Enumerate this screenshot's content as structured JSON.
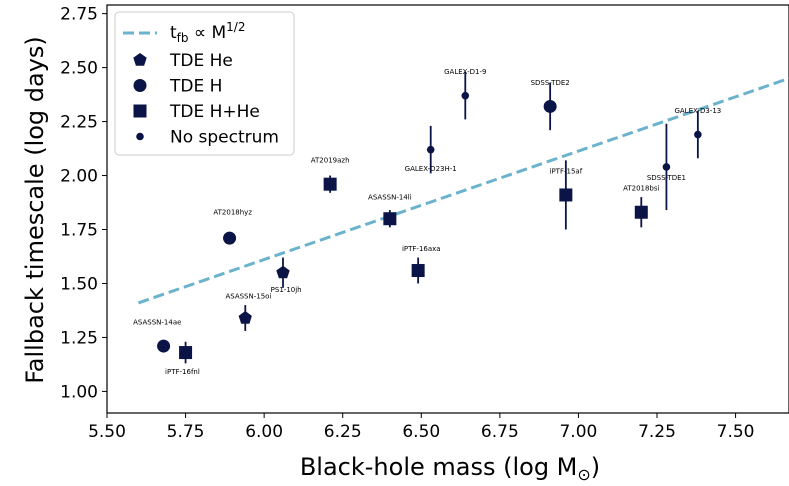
{
  "chart_data": {
    "type": "scatter",
    "xlabel": "Black-hole mass (log M",
    "xlabel_sub": "⊙",
    "xlabel_end": ")",
    "ylabel": "Fallback timescale (log  days)",
    "xlim": [
      5.5,
      7.67
    ],
    "ylim": [
      0.9,
      2.79
    ],
    "xticks": [
      "5.50",
      "5.75",
      "6.00",
      "6.25",
      "6.50",
      "6.75",
      "7.00",
      "7.25",
      "7.50"
    ],
    "yticks": [
      "1.00",
      "1.25",
      "1.50",
      "1.75",
      "2.00",
      "2.25",
      "2.50",
      "2.75"
    ],
    "grid": false,
    "legend_position": "top-left",
    "colors": {
      "marker": "#0b1446",
      "fit_line": "#6bb3cc"
    },
    "fit_line": {
      "label": "t",
      "label_sub": "fb",
      "label_mid": " ∝ M",
      "label_sup": "1/2",
      "x": [
        5.6,
        7.67
      ],
      "y": [
        1.41,
        2.45
      ]
    },
    "legend": [
      {
        "label": "TDE He",
        "marker": "pentagon"
      },
      {
        "label": "TDE H",
        "marker": "circle"
      },
      {
        "label": "TDE H+He",
        "marker": "square"
      },
      {
        "label": "No spectrum",
        "marker": "dot"
      }
    ],
    "points": [
      {
        "name": "ASASSN-14ae",
        "type": "circle",
        "x": 5.68,
        "y": 1.21,
        "yerr": 0.0,
        "lx": 5.66,
        "ly": 1.31
      },
      {
        "name": "iPTF-16fnl",
        "type": "square",
        "x": 5.75,
        "y": 1.18,
        "yerr": 0.05,
        "lx": 5.74,
        "ly": 1.08
      },
      {
        "name": "AT2018hyz",
        "type": "circle",
        "x": 5.89,
        "y": 1.71,
        "yerr": 0.0,
        "lx": 5.9,
        "ly": 1.82
      },
      {
        "name": "ASASSN-15oi",
        "type": "pentagon",
        "x": 5.94,
        "y": 1.34,
        "yerr": 0.06,
        "lx": 5.95,
        "ly": 1.43
      },
      {
        "name": "PS1-10jh",
        "type": "pentagon",
        "x": 6.06,
        "y": 1.55,
        "yerr": 0.07,
        "lx": 6.07,
        "ly": 1.46
      },
      {
        "name": "AT2019azh",
        "type": "square",
        "x": 6.21,
        "y": 1.96,
        "yerr": 0.04,
        "lx": 6.21,
        "ly": 2.06
      },
      {
        "name": "ASASSN-14li",
        "type": "square",
        "x": 6.4,
        "y": 1.8,
        "yerr": 0.04,
        "lx": 6.4,
        "ly": 1.89
      },
      {
        "name": "iPTF-16axa",
        "type": "square",
        "x": 6.49,
        "y": 1.56,
        "yerr": 0.06,
        "lx": 6.5,
        "ly": 1.65
      },
      {
        "name": "GALEX-D23H-1",
        "type": "dot",
        "x": 6.53,
        "y": 2.12,
        "yerr": 0.11,
        "lx": 6.53,
        "ly": 2.02
      },
      {
        "name": "GALEX-D1-9",
        "type": "dot",
        "x": 6.64,
        "y": 2.37,
        "yerr": 0.11,
        "lx": 6.64,
        "ly": 2.47
      },
      {
        "name": "SDSS-TDE2",
        "type": "circle",
        "x": 6.91,
        "y": 2.32,
        "yerr": 0.11,
        "lx": 6.91,
        "ly": 2.42
      },
      {
        "name": "iPTF-15af",
        "type": "square",
        "x": 6.96,
        "y": 1.91,
        "yerr": 0.16,
        "lx": 6.96,
        "ly": 2.01
      },
      {
        "name": "AT2018bsi",
        "type": "square",
        "x": 7.2,
        "y": 1.83,
        "yerr": 0.07,
        "lx": 7.2,
        "ly": 1.93
      },
      {
        "name": "SDSS-TDE1",
        "type": "dot",
        "x": 7.28,
        "y": 2.04,
        "yerr": 0.2,
        "lx": 7.28,
        "ly": 1.98
      },
      {
        "name": "GALEX-D3-13",
        "type": "dot",
        "x": 7.38,
        "y": 2.19,
        "yerr": 0.11,
        "lx": 7.38,
        "ly": 2.29
      }
    ]
  }
}
